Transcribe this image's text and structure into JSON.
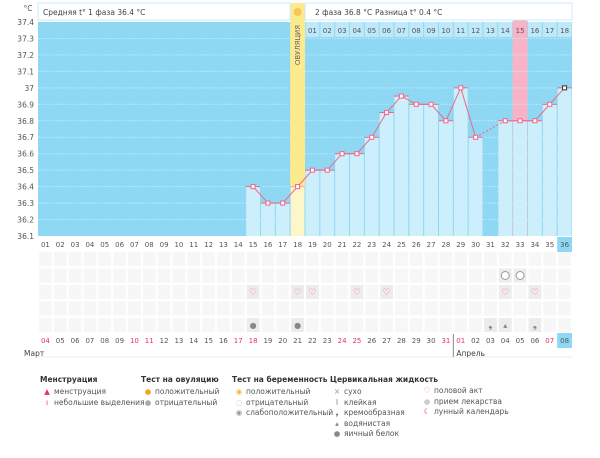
{
  "header": {
    "phase1": "Средняя t° 1 фаза 36.4 °C",
    "phase2": "2 фаза 36.8 °C",
    "diff": "Разница t° 0.4 °C",
    "ovulation_label": "ОВУЛЯЦИЯ"
  },
  "chart_data": {
    "type": "bar",
    "ylabel": "°C",
    "ylim": [
      36.1,
      37.4
    ],
    "yticks": [
      "37.4",
      "37.3",
      "37.2",
      "37.1",
      "37",
      "36.9",
      "36.8",
      "36.7",
      "36.6",
      "36.5",
      "36.4",
      "36.3",
      "36.2",
      "36.1"
    ],
    "cycle_days": [
      "01",
      "02",
      "03",
      "04",
      "05",
      "06",
      "07",
      "08",
      "09",
      "10",
      "11",
      "12",
      "13",
      "14",
      "15",
      "16",
      "17",
      "18",
      "19",
      "20",
      "21",
      "22",
      "23",
      "24",
      "25",
      "26",
      "27",
      "28",
      "29",
      "30",
      "31",
      "32",
      "33",
      "34",
      "35",
      "36"
    ],
    "values": [
      null,
      null,
      null,
      null,
      null,
      null,
      null,
      null,
      null,
      null,
      null,
      null,
      null,
      null,
      36.4,
      36.3,
      36.3,
      36.4,
      36.5,
      36.5,
      36.6,
      36.6,
      36.7,
      36.85,
      36.95,
      36.9,
      36.9,
      36.8,
      37.0,
      36.7,
      null,
      36.8,
      36.8,
      36.8,
      36.9,
      37.0
    ],
    "ovulation_day": 18,
    "phase2_days": [
      "01",
      "02",
      "03",
      "04",
      "05",
      "06",
      "07",
      "08",
      "09",
      "10",
      "11",
      "12",
      "13",
      "14",
      "15",
      "16",
      "17",
      "18"
    ],
    "highlight_pink_day": 33,
    "current_day": 36,
    "dates": [
      "04",
      "05",
      "06",
      "07",
      "08",
      "09",
      "10",
      "11",
      "12",
      "13",
      "14",
      "15",
      "16",
      "17",
      "18",
      "19",
      "20",
      "21",
      "22",
      "23",
      "24",
      "25",
      "26",
      "27",
      "28",
      "29",
      "30",
      "31",
      "01",
      "02",
      "03",
      "04",
      "05",
      "06",
      "07",
      "08"
    ],
    "weekend_date_indexes": [
      0,
      6,
      7,
      13,
      14,
      20,
      21,
      27,
      28,
      34
    ],
    "months": [
      "Март",
      "Апрель"
    ],
    "grid": true
  },
  "events": {
    "pregnancy_weak_positive_days": [
      32,
      33
    ],
    "intercourse_days": [
      15,
      18,
      19,
      22,
      24,
      32,
      34
    ],
    "cervical": [
      {
        "day": 15,
        "type": "egg-white"
      },
      {
        "day": 18,
        "type": "egg-white"
      },
      {
        "day": 31,
        "type": "creamy"
      },
      {
        "day": 32,
        "type": "watery"
      },
      {
        "day": 34,
        "type": "creamy"
      }
    ]
  },
  "colors": {
    "bg": "#8fd8f3",
    "bar": "#cdeefb",
    "line": "#f0668a",
    "ovulation": "#fbea8e",
    "pink": "#f9b3c6",
    "weekend": "#e8335f"
  },
  "legend": {
    "menstruation": {
      "title": "Менструация",
      "items": [
        "менструация",
        "небольшие выделения"
      ]
    },
    "ovulation_test": {
      "title": "Тест на овуляцию",
      "items": [
        "положительный",
        "отрицательный"
      ]
    },
    "pregnancy_test": {
      "title": "Тест на беременность",
      "items": [
        "положительный",
        "отрицательный",
        "слабоположительный"
      ]
    },
    "cervical": {
      "title": "Цервикальная жидкость",
      "items": [
        "сухо",
        "клейкая",
        "кремообразная",
        "водянистая",
        "яичный белок"
      ]
    },
    "other": {
      "items": [
        "половой акт",
        "прием лекарства",
        "лунный календарь"
      ]
    }
  }
}
